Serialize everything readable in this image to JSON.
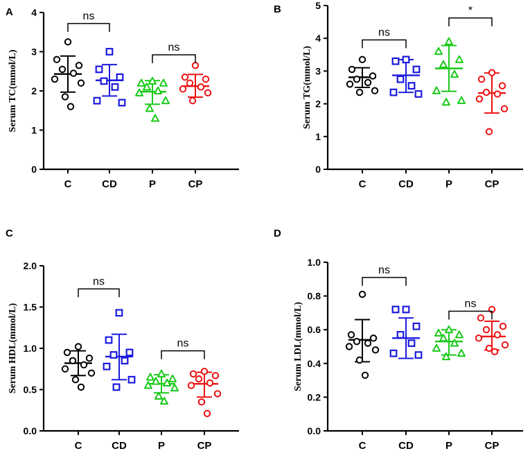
{
  "figure": {
    "title": ""
  },
  "colors": {
    "C": "#000000",
    "CD": "#1a1adf",
    "P": "#19c919",
    "CP": "#ee1111"
  },
  "chart_data": [
    {
      "panel": "A",
      "type": "scatter",
      "title": "",
      "xlabel": "",
      "ylabel": "Serum TC(mmol/L)",
      "categories": [
        "C",
        "CD",
        "P",
        "CP"
      ],
      "ylim": [
        0,
        4
      ],
      "yticks": [
        0,
        1,
        2,
        3,
        4
      ],
      "ytick_labels": [
        "0",
        "1",
        "2",
        "3",
        "4"
      ],
      "groups": [
        {
          "name": "C",
          "marker": "circle",
          "points": [
            3.25,
            2.8,
            2.65,
            2.55,
            2.45,
            2.3,
            2.2,
            1.85,
            1.6
          ],
          "mean": 2.43,
          "sd_low": 1.97,
          "sd_high": 2.89
        },
        {
          "name": "CD",
          "marker": "square",
          "points": [
            3.0,
            2.55,
            2.35,
            2.25,
            2.1,
            1.75,
            1.7
          ],
          "mean": 2.27,
          "sd_low": 1.87,
          "sd_high": 2.67
        },
        {
          "name": "P",
          "marker": "triangle",
          "points": [
            2.25,
            2.2,
            2.2,
            2.1,
            2.0,
            1.95,
            1.75,
            1.55,
            1.3
          ],
          "mean": 1.98,
          "sd_low": 1.66,
          "sd_high": 2.26
        },
        {
          "name": "CP",
          "marker": "circle",
          "points": [
            2.65,
            2.35,
            2.3,
            2.2,
            2.1,
            2.05,
            1.95,
            1.75
          ],
          "mean": 2.12,
          "sd_low": 1.84,
          "sd_high": 2.42
        }
      ],
      "comparisons": [
        {
          "from": "C",
          "to": "CD",
          "label": "ns",
          "y": 3.72
        },
        {
          "from": "P",
          "to": "CP",
          "label": "ns",
          "y": 2.92
        }
      ]
    },
    {
      "panel": "B",
      "type": "scatter",
      "title": "",
      "xlabel": "",
      "ylabel": "Serum TG(mmol/L)",
      "categories": [
        "C",
        "CD",
        "P",
        "CP"
      ],
      "ylim": [
        0,
        5
      ],
      "yticks": [
        0,
        1,
        2,
        3,
        4,
        5
      ],
      "ytick_labels": [
        "0",
        "1",
        "2",
        "3",
        "4",
        "5"
      ],
      "groups": [
        {
          "name": "C",
          "marker": "circle",
          "points": [
            3.35,
            3.05,
            2.85,
            2.75,
            2.65,
            2.6,
            2.4,
            2.35
          ],
          "mean": 2.81,
          "sd_low": 2.5,
          "sd_high": 3.1
        },
        {
          "name": "CD",
          "marker": "square",
          "points": [
            3.35,
            3.3,
            3.05,
            2.75,
            2.55,
            2.35,
            2.3
          ],
          "mean": 2.87,
          "sd_low": 2.35,
          "sd_high": 3.35
        },
        {
          "name": "P",
          "marker": "triangle",
          "points": [
            3.9,
            3.6,
            3.35,
            3.2,
            2.9,
            2.4,
            2.1,
            2.05
          ],
          "mean": 3.08,
          "sd_low": 2.38,
          "sd_high": 3.78
        },
        {
          "name": "CP",
          "marker": "circle",
          "points": [
            2.95,
            2.75,
            2.55,
            2.35,
            2.3,
            2.15,
            1.85,
            1.15
          ],
          "mean": 2.33,
          "sd_low": 1.72,
          "sd_high": 2.94
        }
      ],
      "comparisons": [
        {
          "from": "C",
          "to": "CD",
          "label": "ns",
          "y": 3.95
        },
        {
          "from": "P",
          "to": "CP",
          "label": "*",
          "y": 4.62
        }
      ]
    },
    {
      "panel": "C",
      "type": "scatter",
      "title": "",
      "xlabel": "",
      "ylabel": "Serum HDL(mmol/L)",
      "categories": [
        "C",
        "CD",
        "P",
        "CP"
      ],
      "ylim": [
        0,
        2.0
      ],
      "yticks": [
        0,
        0.5,
        1.0,
        1.5,
        2.0
      ],
      "ytick_labels": [
        "0.0",
        "0.5",
        "1.0",
        "1.5",
        "2.0"
      ],
      "groups": [
        {
          "name": "C",
          "marker": "circle",
          "points": [
            1.02,
            0.95,
            0.88,
            0.85,
            0.8,
            0.75,
            0.7,
            0.62,
            0.53
          ],
          "mean": 0.82,
          "sd_low": 0.67,
          "sd_high": 0.97
        },
        {
          "name": "CD",
          "marker": "square",
          "points": [
            1.43,
            1.1,
            0.95,
            0.92,
            0.85,
            0.78,
            0.62,
            0.53
          ],
          "mean": 0.9,
          "sd_low": 0.62,
          "sd_high": 1.17
        },
        {
          "name": "P",
          "marker": "triangle",
          "points": [
            0.69,
            0.65,
            0.63,
            0.6,
            0.58,
            0.55,
            0.52,
            0.42,
            0.36
          ],
          "mean": 0.57,
          "sd_low": 0.46,
          "sd_high": 0.68
        },
        {
          "name": "CP",
          "marker": "circle",
          "points": [
            0.72,
            0.69,
            0.67,
            0.63,
            0.58,
            0.55,
            0.45,
            0.35,
            0.21
          ],
          "mean": 0.57,
          "sd_low": 0.41,
          "sd_high": 0.71
        }
      ],
      "comparisons": [
        {
          "from": "C",
          "to": "CD",
          "label": "ns",
          "y": 1.72
        },
        {
          "from": "P",
          "to": "CP",
          "label": "ns",
          "y": 0.97
        }
      ]
    },
    {
      "panel": "D",
      "type": "scatter",
      "title": "",
      "xlabel": "",
      "ylabel": "Serum LDL(mmol/L)",
      "categories": [
        "C",
        "CD",
        "P",
        "CP"
      ],
      "ylim": [
        0,
        1.0
      ],
      "yticks": [
        0,
        0.2,
        0.4,
        0.6,
        0.8,
        1.0
      ],
      "ytick_labels": [
        "0.0",
        "0.2",
        "0.4",
        "0.6",
        "0.8",
        "1.0"
      ],
      "groups": [
        {
          "name": "C",
          "marker": "circle",
          "points": [
            0.81,
            0.57,
            0.55,
            0.53,
            0.52,
            0.5,
            0.48,
            0.42,
            0.33
          ],
          "mean": 0.54,
          "sd_low": 0.41,
          "sd_high": 0.66
        },
        {
          "name": "CD",
          "marker": "square",
          "points": [
            0.72,
            0.72,
            0.62,
            0.57,
            0.52,
            0.46,
            0.45
          ],
          "mean": 0.55,
          "sd_low": 0.43,
          "sd_high": 0.67
        },
        {
          "name": "P",
          "marker": "triangle",
          "points": [
            0.6,
            0.58,
            0.57,
            0.55,
            0.52,
            0.49,
            0.46,
            0.44
          ],
          "mean": 0.53,
          "sd_low": 0.45,
          "sd_high": 0.6
        },
        {
          "name": "CP",
          "marker": "circle",
          "points": [
            0.72,
            0.67,
            0.62,
            0.6,
            0.57,
            0.55,
            0.51,
            0.49,
            0.47
          ],
          "mean": 0.56,
          "sd_low": 0.48,
          "sd_high": 0.65
        }
      ],
      "comparisons": [
        {
          "from": "C",
          "to": "CD",
          "label": "ns",
          "y": 0.91
        },
        {
          "from": "P",
          "to": "CP",
          "label": "ns",
          "y": 0.71
        }
      ]
    }
  ]
}
